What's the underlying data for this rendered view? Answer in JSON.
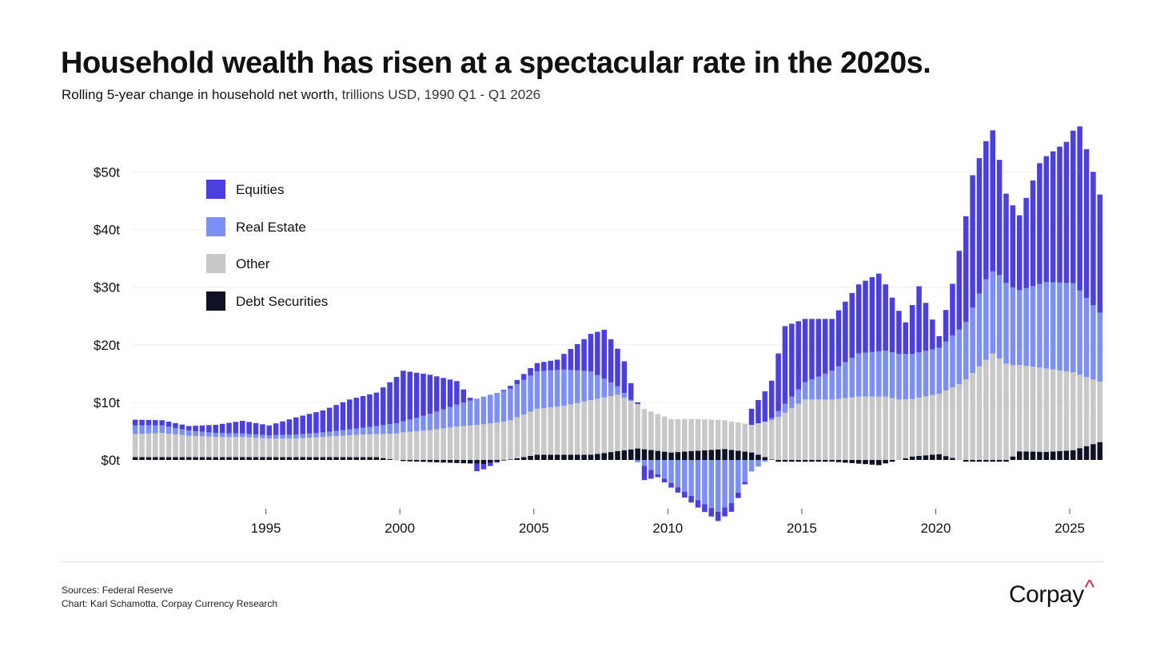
{
  "header": {
    "title": "Household wealth has risen at a spectacular rate in the 2020s.",
    "subtitle_lead": "Rolling 5-year change in household net worth,",
    "subtitle_rest": " trillions USD, 1990 Q1 - Q1 2026"
  },
  "footer": {
    "sources": "Sources: Federal Reserve",
    "credit": "Chart: Karl Schamotta, Corpay Currency Research",
    "logo_text": "Corpay",
    "logo_mark": "^"
  },
  "colors": {
    "Equities": "#4b3fe0",
    "Real Estate": "#7b8ff5",
    "Other": "#c8c8c8",
    "Debt Securities": "#0f1224",
    "grid": "#eeeeee"
  },
  "chart_data": {
    "type": "bar",
    "stacked": true,
    "x_start": "1990 Q1",
    "x_end": "2026 Q1",
    "x_ticks": [
      "1995",
      "2000",
      "2005",
      "2010",
      "2015",
      "2020",
      "2025"
    ],
    "y_ticks": [
      "$0t",
      "$10t",
      "$20t",
      "$30t",
      "$40t",
      "$50t"
    ],
    "ylim": [
      -9,
      59
    ],
    "grid": "horizontal",
    "legend_position": "top-left",
    "series": [
      {
        "name": "Equities",
        "anchor": [
          [
            "1990Q1",
            1.0
          ],
          [
            "1991Q1",
            0.9
          ],
          [
            "1992Q1",
            0.8
          ],
          [
            "1993Q1",
            1.4
          ],
          [
            "1994Q1",
            2.2
          ],
          [
            "1995Q1",
            1.7
          ],
          [
            "1996Q1",
            3.0
          ],
          [
            "1997Q1",
            3.8
          ],
          [
            "1998Q1",
            5.2
          ],
          [
            "1999Q1",
            5.8
          ],
          [
            "2000Q1",
            8.8
          ],
          [
            "2001Q1",
            6.8
          ],
          [
            "2002Q1",
            4.1
          ],
          [
            "2002Q4",
            -1.3
          ],
          [
            "2003Q4",
            0.2
          ],
          [
            "2004Q4",
            1.3
          ],
          [
            "2005Q4",
            1.8
          ],
          [
            "2006Q4",
            5.5
          ],
          [
            "2007Q3",
            8.5
          ],
          [
            "2008Q2",
            5.5
          ],
          [
            "2008Q4",
            0.3
          ],
          [
            "2009Q1",
            -2.5
          ],
          [
            "2009Q3",
            -0.5
          ],
          [
            "2010Q1",
            -0.8
          ],
          [
            "2011Q4",
            -1.6
          ],
          [
            "2012Q2",
            -1.5
          ],
          [
            "2012Q4",
            -0.4
          ],
          [
            "2013Q1",
            2.8
          ],
          [
            "2013Q4",
            6.5
          ],
          [
            "2014Q2",
            13.5
          ],
          [
            "2015Q1",
            11.0
          ],
          [
            "2016Q1",
            9.0
          ],
          [
            "2017Q1",
            12.0
          ],
          [
            "2017Q4",
            13.5
          ],
          [
            "2018Q4",
            5.5
          ],
          [
            "2019Q2",
            11.5
          ],
          [
            "2020Q1",
            2.0
          ],
          [
            "2020Q3",
            9.0
          ],
          [
            "2021Q2",
            23.0
          ],
          [
            "2022Q1",
            24.5
          ],
          [
            "2022Q3",
            15.5
          ],
          [
            "2023Q1",
            13.0
          ],
          [
            "2023Q4",
            21.0
          ],
          [
            "2024Q4",
            24.5
          ],
          [
            "2025Q2",
            28.5
          ],
          [
            "2026Q1",
            20.5
          ]
        ]
      },
      {
        "name": "Real Estate",
        "anchor": [
          [
            "1990Q1",
            1.5
          ],
          [
            "1991Q1",
            1.3
          ],
          [
            "1992Q1",
            0.9
          ],
          [
            "1993Q1",
            0.7
          ],
          [
            "1994Q1",
            0.6
          ],
          [
            "1995Q1",
            0.6
          ],
          [
            "1996Q1",
            0.7
          ],
          [
            "1997Q1",
            0.8
          ],
          [
            "1998Q1",
            1.0
          ],
          [
            "1999Q1",
            1.4
          ],
          [
            "2000Q1",
            1.9
          ],
          [
            "2001Q1",
            2.8
          ],
          [
            "2002Q1",
            3.8
          ],
          [
            "2003Q1",
            4.8
          ],
          [
            "2004Q1",
            5.5
          ],
          [
            "2005Q1",
            6.5
          ],
          [
            "2006Q1",
            6.3
          ],
          [
            "2007Q1",
            5.0
          ],
          [
            "2008Q1",
            1.5
          ],
          [
            "2008Q3",
            0.2
          ],
          [
            "2009Q1",
            -1.0
          ],
          [
            "2010Q1",
            -4.0
          ],
          [
            "2011Q1",
            -7.0
          ],
          [
            "2011Q4",
            -9.0
          ],
          [
            "2012Q2",
            -7.5
          ],
          [
            "2013Q1",
            -2.0
          ],
          [
            "2013Q3",
            -0.3
          ],
          [
            "2014Q1",
            1.0
          ],
          [
            "2015Q1",
            3.0
          ],
          [
            "2016Q1",
            5.0
          ],
          [
            "2017Q1",
            7.5
          ],
          [
            "2018Q1",
            8.0
          ],
          [
            "2019Q1",
            7.8
          ],
          [
            "2020Q1",
            8.0
          ],
          [
            "2021Q1",
            10.0
          ],
          [
            "2021Q4",
            14.0
          ],
          [
            "2022Q2",
            14.5
          ],
          [
            "2023Q1",
            13.0
          ],
          [
            "2024Q1",
            15.0
          ],
          [
            "2025Q1",
            15.5
          ],
          [
            "2026Q1",
            12.0
          ]
        ]
      },
      {
        "name": "Other",
        "anchor": [
          [
            "1990Q1",
            4.0
          ],
          [
            "1991Q1",
            4.2
          ],
          [
            "1992Q1",
            3.7
          ],
          [
            "1993Q1",
            3.5
          ],
          [
            "1994Q1",
            3.5
          ],
          [
            "1995Q1",
            3.2
          ],
          [
            "1996Q1",
            3.2
          ],
          [
            "1997Q1",
            3.5
          ],
          [
            "1998Q1",
            3.8
          ],
          [
            "1999Q1",
            4.0
          ],
          [
            "2000Q1",
            4.8
          ],
          [
            "2001Q1",
            5.2
          ],
          [
            "2002Q1",
            5.8
          ],
          [
            "2003Q1",
            6.2
          ],
          [
            "2004Q1",
            6.8
          ],
          [
            "2005Q1",
            8.0
          ],
          [
            "2006Q1",
            8.5
          ],
          [
            "2007Q1",
            9.5
          ],
          [
            "2008Q1",
            9.8
          ],
          [
            "2009Q1",
            7.0
          ],
          [
            "2010Q1",
            5.8
          ],
          [
            "2011Q1",
            5.5
          ],
          [
            "2012Q1",
            5.0
          ],
          [
            "2013Q1",
            4.8
          ],
          [
            "2014Q1",
            7.5
          ],
          [
            "2015Q1",
            10.5
          ],
          [
            "2016Q1",
            10.5
          ],
          [
            "2017Q1",
            11.0
          ],
          [
            "2018Q1",
            11.0
          ],
          [
            "2019Q1",
            10.0
          ],
          [
            "2020Q1",
            10.5
          ],
          [
            "2021Q1",
            14.0
          ],
          [
            "2022Q1",
            18.5
          ],
          [
            "2023Q1",
            15.0
          ],
          [
            "2024Q1",
            14.5
          ],
          [
            "2025Q1",
            13.5
          ],
          [
            "2026Q1",
            10.5
          ]
        ]
      },
      {
        "name": "Debt Securities",
        "anchor": [
          [
            "1990Q1",
            0.5
          ],
          [
            "1995Q1",
            0.5
          ],
          [
            "1999Q1",
            0.5
          ],
          [
            "2000Q1",
            -0.2
          ],
          [
            "2003Q1",
            -0.7
          ],
          [
            "2004Q1",
            0.1
          ],
          [
            "2005Q1",
            0.9
          ],
          [
            "2007Q1",
            0.9
          ],
          [
            "2008Q4",
            2.0
          ],
          [
            "2010Q1",
            1.3
          ],
          [
            "2012Q1",
            1.9
          ],
          [
            "2013Q1",
            1.3
          ],
          [
            "2014Q1",
            -0.3
          ],
          [
            "2016Q1",
            -0.3
          ],
          [
            "2017Q4",
            -0.9
          ],
          [
            "2019Q1",
            0.6
          ],
          [
            "2020Q1",
            1.0
          ],
          [
            "2021Q1",
            -0.3
          ],
          [
            "2022Q3",
            -0.3
          ],
          [
            "2023Q1",
            1.5
          ],
          [
            "2024Q1",
            1.4
          ],
          [
            "2025Q1",
            1.7
          ],
          [
            "2026Q1",
            3.1
          ]
        ]
      }
    ]
  }
}
